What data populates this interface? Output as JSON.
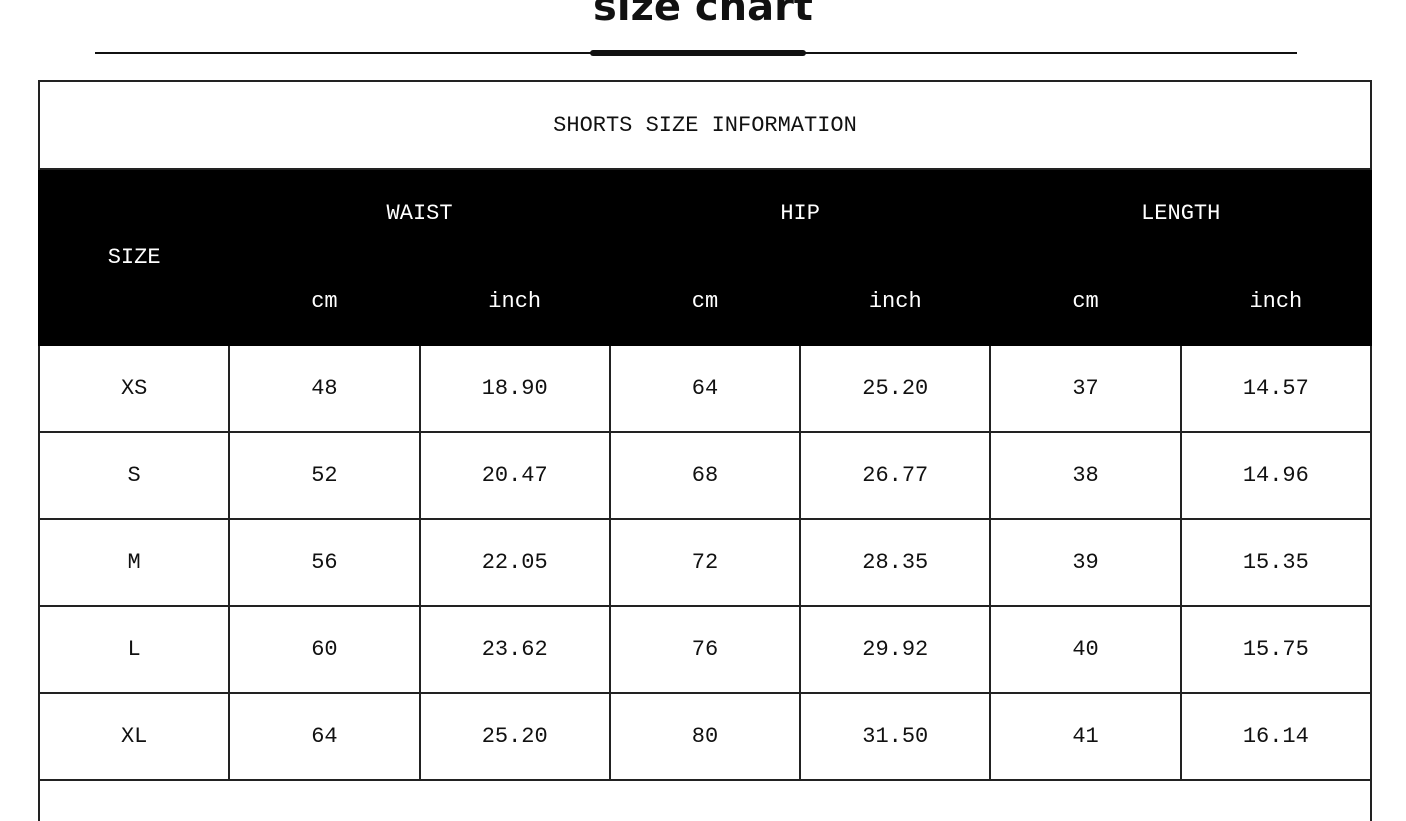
{
  "title": "size chart",
  "table": {
    "caption": "SHORTS SIZE INFORMATION",
    "size_header": "SIZE",
    "groups": [
      "WAIST",
      "HIP",
      "LENGTH"
    ],
    "units": [
      "cm",
      "inch",
      "cm",
      "inch",
      "cm",
      "inch"
    ],
    "rows": [
      [
        "XS",
        "48",
        "18.90",
        "64",
        "25.20",
        "37",
        "14.57"
      ],
      [
        "S",
        "52",
        "20.47",
        "68",
        "26.77",
        "38",
        "14.96"
      ],
      [
        "M",
        "56",
        "22.05",
        "72",
        "28.35",
        "39",
        "15.35"
      ],
      [
        "L",
        "60",
        "23.62",
        "76",
        "29.92",
        "40",
        "15.75"
      ],
      [
        "XL",
        "64",
        "25.20",
        "80",
        "31.50",
        "41",
        "16.14"
      ]
    ]
  },
  "colors": {
    "header_bg": "#000000",
    "header_text": "#ffffff"
  }
}
